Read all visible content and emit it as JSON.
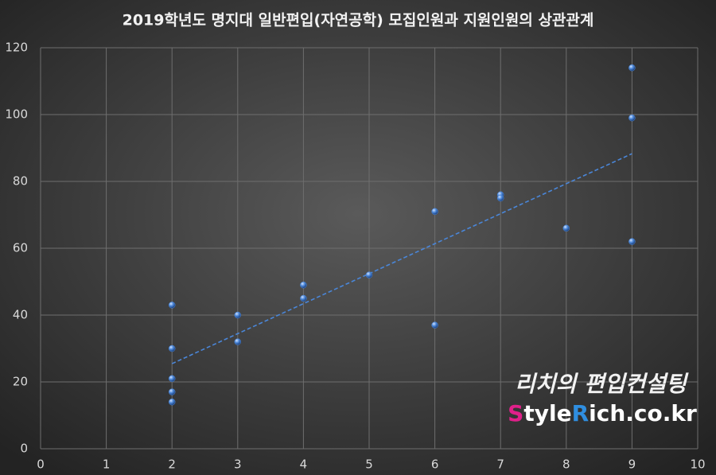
{
  "chart_data": {
    "type": "scatter",
    "title": "2019학년도 명지대 일반편입(자연공학) 모집인원과 지원인원의 상관관계",
    "x": [
      2,
      2,
      2,
      2,
      2,
      3,
      3,
      4,
      4,
      5,
      6,
      6,
      7,
      7,
      8,
      9,
      9,
      9
    ],
    "series": [
      {
        "color": "#4a86d8",
        "values": [
          43,
          30,
          21,
          17,
          14,
          40,
          32,
          49,
          45,
          52,
          71,
          37,
          76,
          75,
          66,
          114,
          99,
          62
        ]
      }
    ],
    "xlim": [
      0,
      10
    ],
    "xticks": [
      0,
      1,
      2,
      3,
      4,
      5,
      6,
      7,
      8,
      9,
      10
    ],
    "ylim": [
      0,
      120
    ],
    "yticks": [
      0,
      20,
      40,
      60,
      80,
      100,
      120
    ],
    "grid": true,
    "trendline": "linear",
    "trendline_color": "#4a86d8",
    "watermark": {
      "line1": "리치의 편입컨설팅",
      "line2": [
        "S",
        "tyle",
        "R",
        "ich.co.kr"
      ]
    }
  }
}
